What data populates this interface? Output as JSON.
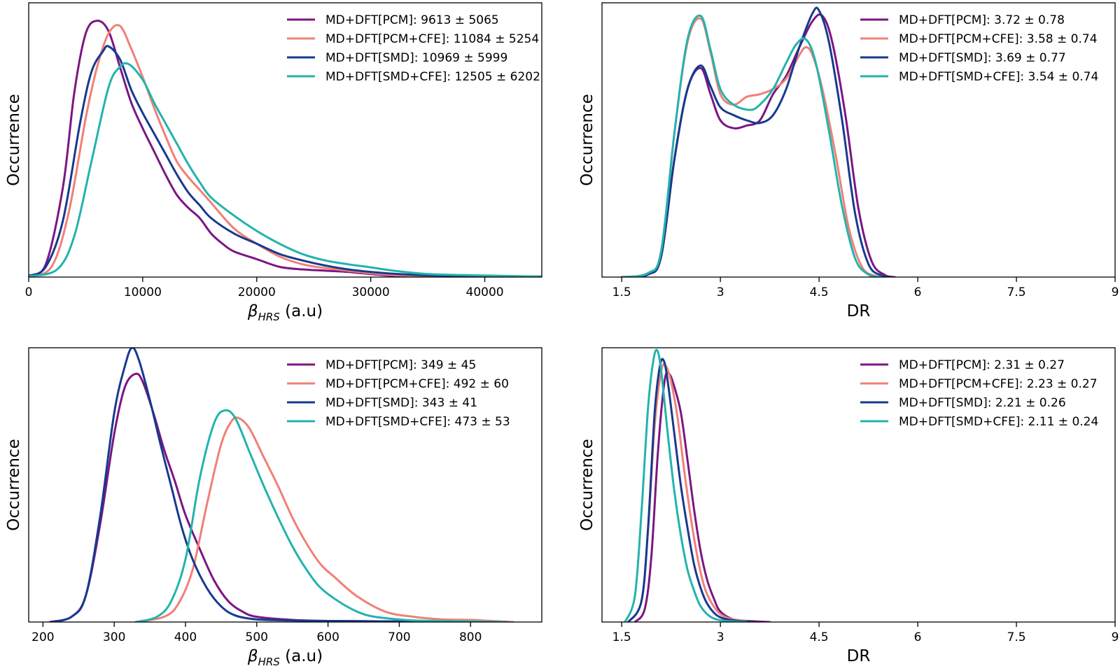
{
  "series_colors": {
    "MD+DFT[PCM]": "#7b1682",
    "MD+DFT[PCM+CFE]": "#f08077",
    "MD+DFT[SMD]": "#163a8f",
    "MD+DFT[SMD+CFE]": "#23b3ad"
  },
  "chart_data": [
    {
      "type": "line",
      "panel": "top-left",
      "xlabel_symbol": "β",
      "xlabel_subscript": "HRS",
      "xlabel_unit": " (a.u)",
      "ylabel": "Occurrence",
      "xlim": [
        0,
        45000
      ],
      "ylim": [
        0,
        1.07
      ],
      "xticks": [
        0,
        10000,
        20000,
        30000,
        40000
      ],
      "xtick_labels": [
        "0",
        "10000",
        "20000",
        "30000",
        "40000"
      ],
      "legend_position": "top-right",
      "grid": false,
      "series": [
        {
          "name": "MD+DFT[PCM]",
          "legend": "MD+DFT[PCM]: 9613 ± 5065",
          "x": [
            0,
            1500,
            3000,
            4000,
            5000,
            6000,
            7000,
            8000,
            9000,
            10000,
            11000,
            12000,
            13000,
            14000,
            15000,
            16000,
            17000,
            18000,
            20000,
            22000,
            24000,
            26000,
            28000,
            30000,
            32000,
            35000,
            40000,
            45000
          ],
          "y": [
            0.005,
            0.05,
            0.35,
            0.72,
            0.95,
            1.0,
            0.96,
            0.82,
            0.68,
            0.58,
            0.49,
            0.4,
            0.32,
            0.27,
            0.23,
            0.17,
            0.13,
            0.1,
            0.07,
            0.04,
            0.03,
            0.025,
            0.02,
            0.012,
            0.005,
            0.003,
            0.002,
            0.002
          ]
        },
        {
          "name": "MD+DFT[PCM+CFE]",
          "legend": "MD+DFT[PCM+CFE]: 11084 ± 5254",
          "x": [
            0,
            2000,
            3500,
            5000,
            6000,
            7000,
            8000,
            9000,
            10000,
            11000,
            12000,
            13000,
            14000,
            15000,
            16000,
            18000,
            20000,
            22000,
            24000,
            26000,
            28000,
            30000,
            32000,
            35000,
            40000,
            45000
          ],
          "y": [
            0.003,
            0.04,
            0.25,
            0.62,
            0.82,
            0.95,
            0.98,
            0.89,
            0.78,
            0.66,
            0.55,
            0.45,
            0.39,
            0.34,
            0.29,
            0.19,
            0.13,
            0.08,
            0.05,
            0.035,
            0.025,
            0.015,
            0.008,
            0.004,
            0.002,
            0.002
          ]
        },
        {
          "name": "MD+DFT[SMD]",
          "legend": "MD+DFT[SMD]: 10969 ± 5999",
          "x": [
            0,
            1500,
            3000,
            4500,
            5500,
            6500,
            7000,
            8000,
            9000,
            10000,
            11000,
            12000,
            13000,
            14000,
            15000,
            16000,
            18000,
            20000,
            22000,
            24000,
            26000,
            28000,
            30000,
            32000,
            35000,
            40000,
            45000
          ],
          "y": [
            0.005,
            0.04,
            0.22,
            0.6,
            0.8,
            0.88,
            0.9,
            0.85,
            0.73,
            0.64,
            0.56,
            0.48,
            0.4,
            0.33,
            0.28,
            0.23,
            0.17,
            0.13,
            0.09,
            0.065,
            0.045,
            0.03,
            0.02,
            0.013,
            0.007,
            0.003,
            0.002
          ]
        },
        {
          "name": "MD+DFT[SMD+CFE]",
          "legend": "MD+DFT[SMD+CFE]: 12505 ± 6202",
          "x": [
            0,
            2500,
            4000,
            5500,
            7000,
            8000,
            8800,
            10000,
            11000,
            12000,
            13000,
            14000,
            15000,
            16000,
            18000,
            20000,
            22000,
            24000,
            26000,
            28000,
            30000,
            32000,
            35000,
            40000,
            45000
          ],
          "y": [
            0.003,
            0.03,
            0.16,
            0.45,
            0.74,
            0.82,
            0.83,
            0.77,
            0.68,
            0.6,
            0.52,
            0.44,
            0.37,
            0.31,
            0.24,
            0.18,
            0.13,
            0.09,
            0.065,
            0.05,
            0.038,
            0.025,
            0.012,
            0.006,
            0.002
          ]
        }
      ]
    },
    {
      "type": "line",
      "panel": "top-right",
      "xlabel": "DR",
      "ylabel": "Occurrence",
      "xlim": [
        1.2,
        9
      ],
      "ylim": [
        0,
        1.05
      ],
      "xticks": [
        1.5,
        3,
        4.5,
        6,
        7.5,
        9
      ],
      "xtick_labels": [
        "1.5",
        "3",
        "4.5",
        "6",
        "7.5",
        "9"
      ],
      "legend_position": "top-right",
      "grid": false,
      "series": [
        {
          "name": "MD+DFT[PCM]",
          "legend": "MD+DFT[PCM]: 3.72 ± 0.78",
          "x": [
            1.5,
            1.9,
            2.1,
            2.3,
            2.5,
            2.7,
            2.85,
            3.0,
            3.2,
            3.4,
            3.6,
            3.8,
            4.0,
            4.2,
            4.4,
            4.55,
            4.7,
            4.9,
            5.1,
            5.3,
            5.5,
            5.65
          ],
          "y": [
            0.0,
            0.01,
            0.08,
            0.45,
            0.72,
            0.8,
            0.7,
            0.6,
            0.57,
            0.58,
            0.6,
            0.7,
            0.77,
            0.88,
            0.98,
            1.0,
            0.9,
            0.62,
            0.26,
            0.06,
            0.008,
            0.0
          ]
        },
        {
          "name": "MD+DFT[PCM+CFE]",
          "legend": "MD+DFT[PCM+CFE]: 3.58 ± 0.74",
          "x": [
            1.5,
            1.9,
            2.1,
            2.3,
            2.5,
            2.7,
            2.85,
            3.0,
            3.2,
            3.4,
            3.6,
            3.8,
            4.0,
            4.2,
            4.3,
            4.4,
            4.55,
            4.75,
            4.95,
            5.15,
            5.35,
            5.55
          ],
          "y": [
            0.0,
            0.015,
            0.1,
            0.55,
            0.9,
            0.99,
            0.86,
            0.7,
            0.66,
            0.69,
            0.7,
            0.72,
            0.76,
            0.85,
            0.88,
            0.85,
            0.72,
            0.47,
            0.19,
            0.04,
            0.005,
            0.0
          ]
        },
        {
          "name": "MD+DFT[SMD]",
          "legend": "MD+DFT[SMD]: 3.69 ± 0.77",
          "x": [
            1.5,
            1.9,
            2.1,
            2.3,
            2.5,
            2.7,
            2.85,
            3.0,
            3.2,
            3.4,
            3.6,
            3.8,
            4.0,
            4.2,
            4.4,
            4.5,
            4.65,
            4.85,
            5.05,
            5.25,
            5.45,
            5.6
          ],
          "y": [
            0.0,
            0.01,
            0.08,
            0.45,
            0.72,
            0.81,
            0.73,
            0.65,
            0.62,
            0.6,
            0.59,
            0.62,
            0.72,
            0.88,
            1.01,
            1.02,
            0.9,
            0.6,
            0.24,
            0.05,
            0.006,
            0.0
          ]
        },
        {
          "name": "MD+DFT[SMD+CFE]",
          "legend": "MD+DFT[SMD+CFE]: 3.54 ± 0.74",
          "x": [
            1.5,
            1.9,
            2.1,
            2.3,
            2.5,
            2.7,
            2.85,
            3.0,
            3.2,
            3.45,
            3.6,
            3.8,
            4.0,
            4.15,
            4.3,
            4.45,
            4.65,
            4.85,
            5.05,
            5.25,
            5.45
          ],
          "y": [
            0.0,
            0.015,
            0.1,
            0.55,
            0.91,
            1.0,
            0.87,
            0.72,
            0.66,
            0.64,
            0.66,
            0.72,
            0.82,
            0.89,
            0.91,
            0.82,
            0.56,
            0.27,
            0.07,
            0.01,
            0.0
          ]
        }
      ]
    },
    {
      "type": "line",
      "panel": "bottom-left",
      "xlabel_symbol": "β",
      "xlabel_subscript": "HRS",
      "xlabel_unit": " (a.u)",
      "ylabel": "Occurrence",
      "xlim": [
        180,
        900
      ],
      "ylim": [
        0,
        1.05
      ],
      "xticks": [
        200,
        300,
        400,
        500,
        600,
        700,
        800
      ],
      "xtick_labels": [
        "200",
        "300",
        "400",
        "500",
        "600",
        "700",
        "800"
      ],
      "legend_position": "top-right",
      "grid": false,
      "series": [
        {
          "name": "MD+DFT[PCM]",
          "legend": "MD+DFT[PCM]: 349 ± 45",
          "x": [
            210,
            240,
            260,
            280,
            300,
            315,
            330,
            340,
            355,
            370,
            385,
            400,
            420,
            440,
            460,
            480,
            500,
            550,
            600,
            700,
            850
          ],
          "y": [
            0.0,
            0.02,
            0.1,
            0.37,
            0.72,
            0.9,
            0.95,
            0.92,
            0.8,
            0.66,
            0.54,
            0.41,
            0.28,
            0.16,
            0.08,
            0.04,
            0.02,
            0.008,
            0.004,
            0.002,
            0.0
          ]
        },
        {
          "name": "MD+DFT[PCM+CFE]",
          "legend": "MD+DFT[PCM+CFE]: 492 ± 60",
          "x": [
            330,
            370,
            390,
            410,
            430,
            450,
            465,
            475,
            490,
            510,
            530,
            550,
            570,
            590,
            610,
            640,
            680,
            720,
            760,
            800,
            830,
            860
          ],
          "y": [
            0.0,
            0.02,
            0.07,
            0.2,
            0.45,
            0.68,
            0.77,
            0.78,
            0.74,
            0.63,
            0.52,
            0.4,
            0.3,
            0.22,
            0.17,
            0.1,
            0.04,
            0.02,
            0.01,
            0.008,
            0.004,
            0.0
          ]
        },
        {
          "name": "MD+DFT[SMD]",
          "legend": "MD+DFT[SMD]: 343 ± 41",
          "x": [
            210,
            240,
            260,
            280,
            300,
            315,
            325,
            335,
            350,
            365,
            380,
            395,
            410,
            430,
            450,
            470,
            500,
            550,
            600,
            700,
            850
          ],
          "y": [
            0.0,
            0.02,
            0.1,
            0.4,
            0.8,
            0.98,
            1.05,
            1.0,
            0.85,
            0.68,
            0.52,
            0.36,
            0.24,
            0.13,
            0.06,
            0.025,
            0.01,
            0.006,
            0.004,
            0.002,
            0.0
          ]
        },
        {
          "name": "MD+DFT[SMD+CFE]",
          "legend": "MD+DFT[SMD+CFE]: 473 ± 53",
          "x": [
            330,
            360,
            380,
            400,
            420,
            440,
            455,
            470,
            490,
            510,
            530,
            550,
            570,
            590,
            620,
            650,
            680,
            720,
            760,
            800,
            850
          ],
          "y": [
            0.0,
            0.02,
            0.08,
            0.24,
            0.55,
            0.76,
            0.81,
            0.78,
            0.65,
            0.52,
            0.4,
            0.29,
            0.2,
            0.13,
            0.07,
            0.03,
            0.015,
            0.006,
            0.004,
            0.002,
            0.0
          ]
        }
      ]
    },
    {
      "type": "line",
      "panel": "bottom-right",
      "xlabel": "DR",
      "ylabel": "Occurrence",
      "xlim": [
        1.2,
        9
      ],
      "ylim": [
        0,
        1.05
      ],
      "xticks": [
        1.5,
        3,
        4.5,
        6,
        7.5,
        9
      ],
      "xtick_labels": [
        "1.5",
        "3",
        "4.5",
        "6",
        "7.5",
        "9"
      ],
      "legend_position": "top-right",
      "grid": false,
      "series": [
        {
          "name": "MD+DFT[PCM]",
          "legend": "MD+DFT[PCM]: 2.31 ± 0.27",
          "x": [
            1.7,
            1.85,
            1.95,
            2.05,
            2.15,
            2.22,
            2.3,
            2.4,
            2.5,
            2.6,
            2.7,
            2.8,
            2.9,
            3.0,
            3.2,
            3.5,
            3.75
          ],
          "y": [
            0.0,
            0.05,
            0.25,
            0.65,
            0.92,
            0.95,
            0.9,
            0.8,
            0.62,
            0.43,
            0.27,
            0.16,
            0.09,
            0.04,
            0.01,
            0.003,
            0.0
          ]
        },
        {
          "name": "MD+DFT[PCM+CFE]",
          "legend": "MD+DFT[PCM+CFE]: 2.23 ± 0.27",
          "x": [
            1.6,
            1.8,
            1.9,
            2.0,
            2.1,
            2.17,
            2.25,
            2.35,
            2.45,
            2.55,
            2.65,
            2.75,
            2.85,
            3.0,
            3.2,
            3.5
          ],
          "y": [
            0.0,
            0.08,
            0.35,
            0.75,
            0.96,
            0.98,
            0.92,
            0.78,
            0.58,
            0.4,
            0.25,
            0.14,
            0.08,
            0.03,
            0.01,
            0.0
          ]
        },
        {
          "name": "MD+DFT[SMD]",
          "legend": "MD+DFT[SMD]: 2.21 ± 0.26",
          "x": [
            1.6,
            1.8,
            1.9,
            2.0,
            2.08,
            2.14,
            2.2,
            2.3,
            2.4,
            2.5,
            2.6,
            2.7,
            2.8,
            2.95,
            3.15,
            3.5
          ],
          "y": [
            0.0,
            0.08,
            0.36,
            0.8,
            0.98,
            1.0,
            0.92,
            0.72,
            0.52,
            0.36,
            0.22,
            0.13,
            0.07,
            0.025,
            0.008,
            0.0
          ]
        },
        {
          "name": "MD+DFT[SMD+CFE]",
          "legend": "MD+DFT[SMD+CFE]: 2.11 ± 0.24",
          "x": [
            1.55,
            1.7,
            1.8,
            1.9,
            1.98,
            2.04,
            2.1,
            2.2,
            2.3,
            2.4,
            2.5,
            2.6,
            2.7,
            2.85,
            3.05,
            3.4
          ],
          "y": [
            0.0,
            0.1,
            0.42,
            0.82,
            1.0,
            1.04,
            0.96,
            0.72,
            0.5,
            0.33,
            0.2,
            0.12,
            0.06,
            0.02,
            0.005,
            0.0
          ]
        }
      ]
    }
  ]
}
